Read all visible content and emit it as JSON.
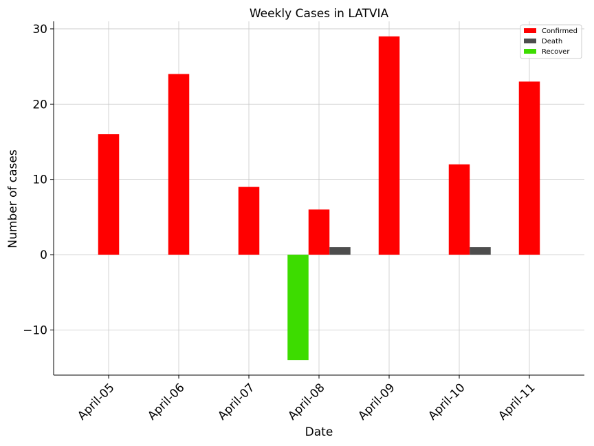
{
  "chart_data": {
    "type": "bar",
    "title": "Weekly Cases in LATVIA",
    "xlabel": "Date",
    "ylabel": "Number of cases",
    "categories": [
      "April-05",
      "April-06",
      "April-07",
      "April-08",
      "April-09",
      "April-10",
      "April-11"
    ],
    "series": [
      {
        "name": "Confirmed",
        "color": "#ff0000",
        "values": [
          16,
          24,
          9,
          6,
          29,
          12,
          23
        ]
      },
      {
        "name": "Death",
        "color": "#4d4d4d",
        "values": [
          0,
          0,
          0,
          1,
          0,
          1,
          0
        ]
      },
      {
        "name": "Recover",
        "color": "#3ddc00",
        "values": [
          0,
          0,
          0,
          -14,
          0,
          0,
          0
        ]
      }
    ],
    "ylim": [
      -16,
      31
    ],
    "yticks": [
      -10,
      0,
      10,
      20,
      30
    ],
    "grid": true,
    "legend_position": "top-right"
  }
}
